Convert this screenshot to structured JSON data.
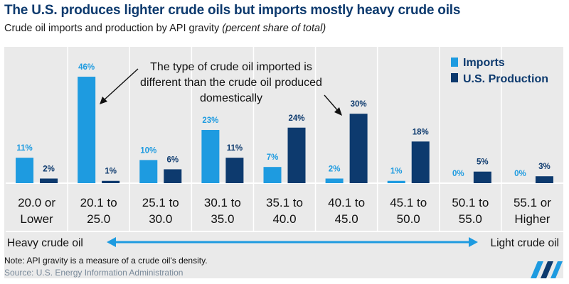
{
  "header": {
    "title": "The U.S. produces lighter crude oils but imports mostly heavy crude oils",
    "subtitle_main": "Crude oil imports and production by API gravity ",
    "subtitle_unit": "(percent share of total)"
  },
  "annotation": {
    "line1": "The type of crude oil imported is",
    "line2": "different than the crude oil produced",
    "line3": "domestically"
  },
  "scale": {
    "left_label": "Heavy crude oil",
    "right_label": "Light crude oil"
  },
  "footer": {
    "note": "Note: API gravity is a measure of a crude oil's density.",
    "source": "Source: U.S. Energy Information Administration"
  },
  "colors": {
    "imports": "#1e9be0",
    "production": "#0d3a6e",
    "background": "#eaeaea"
  },
  "chart_data": {
    "type": "bar",
    "title": "The U.S. produces lighter crude oils but imports mostly heavy crude oils",
    "subtitle": "Crude oil imports and production by API gravity (percent share of total)",
    "categories": [
      [
        "20.0 or",
        "Lower"
      ],
      [
        "20.1 to",
        "25.0"
      ],
      [
        "25.1 to",
        "30.0"
      ],
      [
        "30.1 to",
        "35.0"
      ],
      [
        "35.1 to",
        "40.0"
      ],
      [
        "40.1 to",
        "45.0"
      ],
      [
        "45.1 to",
        "50.0"
      ],
      [
        "50.1 to",
        "55.0"
      ],
      [
        "55.1 or",
        "Higher"
      ]
    ],
    "series": [
      {
        "name": "Imports",
        "values": [
          11,
          46,
          10,
          23,
          7,
          2,
          1,
          0,
          0
        ],
        "labels": [
          "11%",
          "46%",
          "10%",
          "23%",
          "7%",
          "2%",
          "1%",
          "0%",
          "0%"
        ]
      },
      {
        "name": "U.S. Production",
        "values": [
          2,
          1,
          6,
          11,
          24,
          30,
          18,
          5,
          3
        ],
        "labels": [
          "2%",
          "1%",
          "6%",
          "11%",
          "24%",
          "30%",
          "18%",
          "5%",
          "3%"
        ]
      }
    ],
    "ylim": [
      0,
      50
    ],
    "legend": "top-right",
    "grid": false
  }
}
